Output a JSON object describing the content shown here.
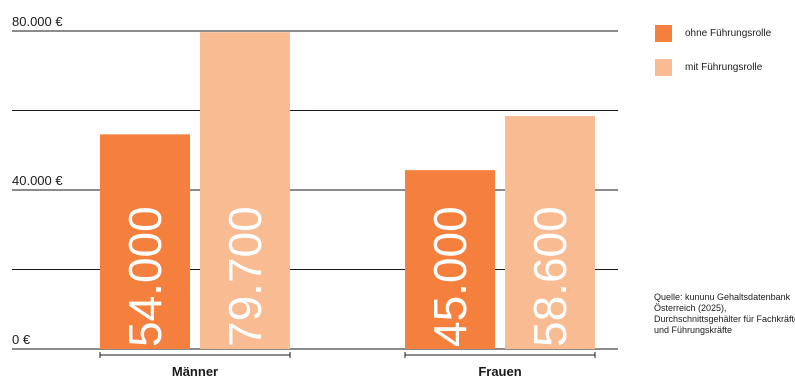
{
  "chart_data": {
    "type": "bar",
    "categories": [
      "Männer",
      "Frauen"
    ],
    "series": [
      {
        "name": "ohne Führungsrolle",
        "color": "#F5803E",
        "values": [
          54000,
          45000
        ],
        "labels": [
          "54.000",
          "45.000"
        ]
      },
      {
        "name": "mit Führungsrolle",
        "color": "#F8BB92",
        "values": [
          79700,
          58600
        ],
        "labels": [
          "79.700",
          "58.600"
        ]
      }
    ],
    "ylim": [
      0,
      80000
    ],
    "gridlines": [
      0,
      20000,
      40000,
      60000,
      80000
    ],
    "tick_labels": [
      {
        "value": 0,
        "label": "0 €"
      },
      {
        "value": 40000,
        "label": "40.000 €"
      },
      {
        "value": 80000,
        "label": "80.000 €"
      }
    ],
    "legend_position": "top-right",
    "title": "",
    "xlabel": "",
    "ylabel": ""
  },
  "source_text": "Quelle: kununu Gehaltsdatenbank Österreich (2025), Durchschnittsgehälter für Fachkräfte und Führungskräfte"
}
